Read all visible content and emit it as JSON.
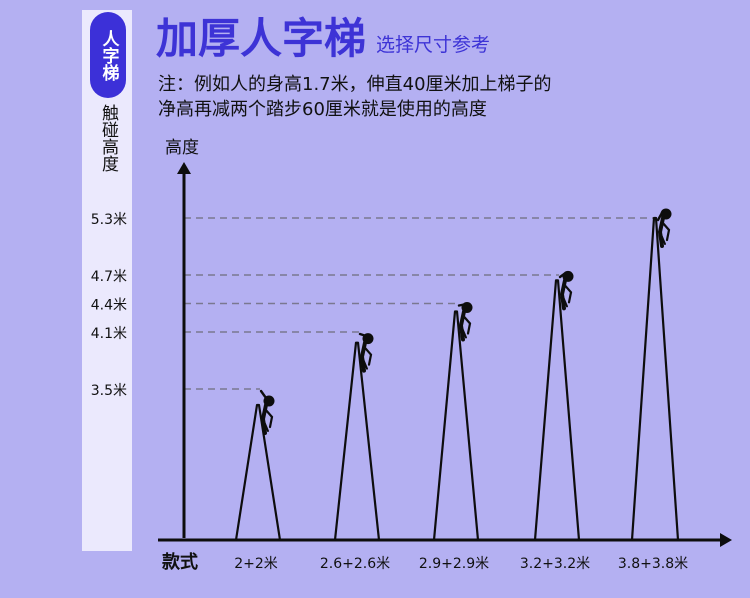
{
  "header": {
    "badge": "人字梯",
    "title": "加厚人字梯",
    "subtitle": "选择尺寸参考",
    "note_line1": "注：例如人的身高1.7米，伸直40厘米加上梯子的",
    "note_line2": "净高再减两个踏步60厘米就是使用的高度"
  },
  "sidebar": {
    "caption": "触碰高度"
  },
  "colors": {
    "background": "#b4b0f2",
    "accent": "#3c30d8",
    "sidebar": "#ebe9fd",
    "ink": "#111111",
    "guide": "#7a7890"
  },
  "chart_data": {
    "type": "bar",
    "title": "加厚人字梯",
    "xlabel": "款式",
    "ylabel": "高度",
    "categories": [
      "2+2米",
      "2.6+2.6米",
      "2.9+2.9米",
      "3.2+3.2米",
      "3.8+3.8米"
    ],
    "touch_heights": [
      "3.5米",
      "4.1米",
      "4.4米",
      "4.7米",
      "5.3米"
    ],
    "values": [
      3.5,
      4.1,
      4.4,
      4.7,
      5.3
    ],
    "ladder_heights": [
      2.0,
      2.6,
      2.9,
      3.2,
      3.8
    ],
    "grid": "dashed guides to each ladder top",
    "legend": "none"
  }
}
